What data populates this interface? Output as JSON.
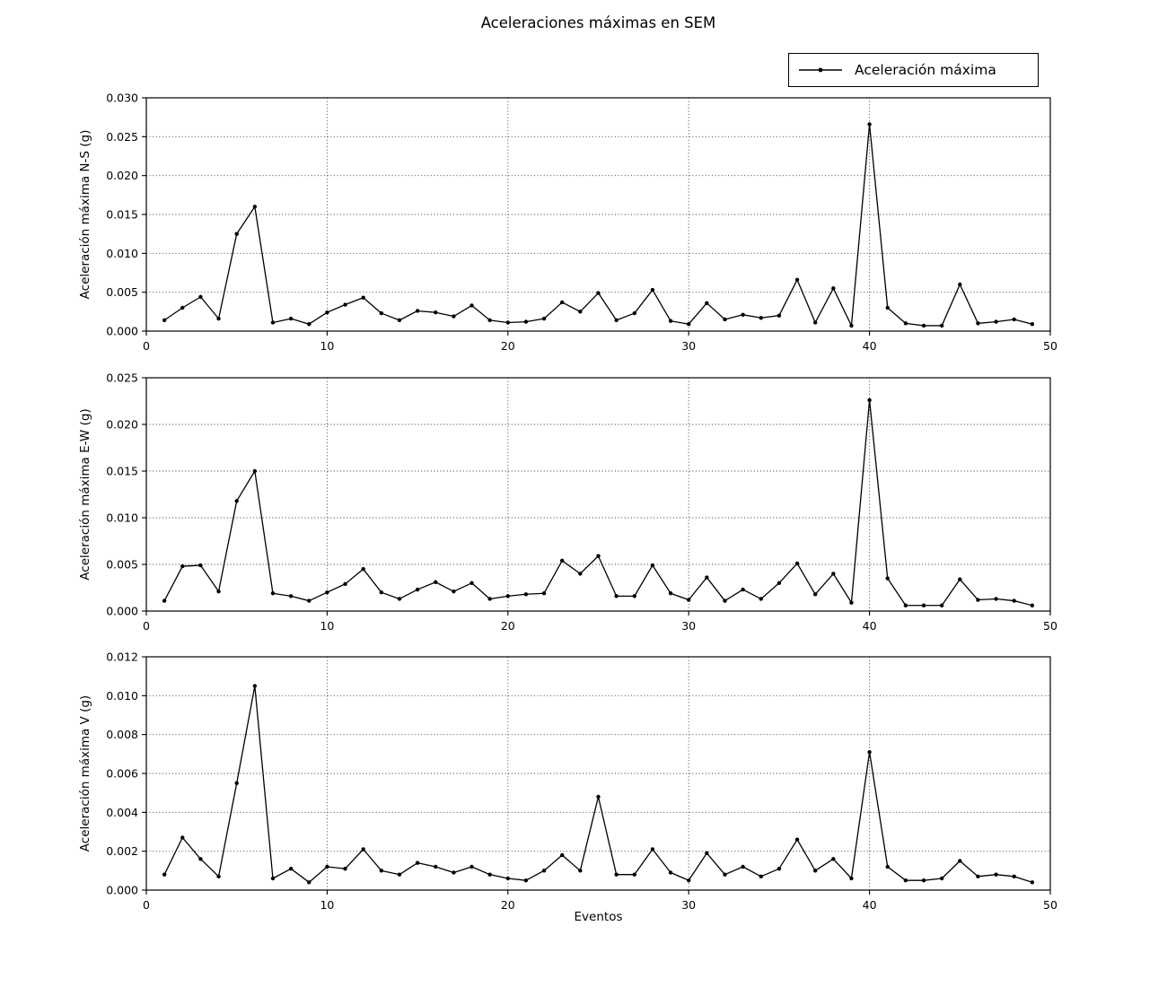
{
  "chart_data": {
    "type": "line",
    "title": "Aceleraciones máximas en SEM",
    "xlabel": "Eventos",
    "legend": [
      "Aceleración máxima"
    ],
    "legend_position": "upper-right-above-axes",
    "grid": true,
    "grid_style": "dotted",
    "line_color": "#000000",
    "marker": "point",
    "x_range": [
      0,
      50
    ],
    "xticks": [
      0,
      10,
      20,
      30,
      40,
      50
    ],
    "x": [
      1,
      2,
      3,
      4,
      5,
      6,
      7,
      8,
      9,
      10,
      11,
      12,
      13,
      14,
      15,
      16,
      17,
      18,
      19,
      20,
      21,
      22,
      23,
      24,
      25,
      26,
      27,
      28,
      29,
      30,
      31,
      32,
      33,
      34,
      35,
      36,
      37,
      38,
      39,
      40,
      41,
      42,
      43,
      44,
      45,
      46,
      47,
      48,
      49
    ],
    "panels": [
      {
        "name": "N-S",
        "ylabel": "Aceleración máxima N-S (g)",
        "ylim": [
          0.0,
          0.03
        ],
        "yticks": [
          0.0,
          0.005,
          0.01,
          0.015,
          0.02,
          0.025,
          0.03
        ],
        "values": [
          0.0014,
          0.003,
          0.0044,
          0.0016,
          0.0125,
          0.016,
          0.0011,
          0.0016,
          0.0009,
          0.0024,
          0.0034,
          0.0043,
          0.0023,
          0.0014,
          0.0026,
          0.0024,
          0.0019,
          0.0033,
          0.0014,
          0.0011,
          0.0012,
          0.0016,
          0.0037,
          0.0025,
          0.0049,
          0.0014,
          0.0023,
          0.0053,
          0.0013,
          0.0009,
          0.0036,
          0.0015,
          0.0021,
          0.0017,
          0.002,
          0.0066,
          0.0011,
          0.0055,
          0.0007,
          0.0266,
          0.003,
          0.001,
          0.0007,
          0.0007,
          0.006,
          0.001,
          0.0012,
          0.0015,
          0.0009
        ]
      },
      {
        "name": "E-W",
        "ylabel": "Aceleración máxima E-W (g)",
        "ylim": [
          0.0,
          0.025
        ],
        "yticks": [
          0.0,
          0.005,
          0.01,
          0.015,
          0.02,
          0.025
        ],
        "values": [
          0.0011,
          0.0048,
          0.0049,
          0.0021,
          0.0118,
          0.015,
          0.0019,
          0.0016,
          0.0011,
          0.002,
          0.0029,
          0.0045,
          0.002,
          0.0013,
          0.0023,
          0.0031,
          0.0021,
          0.003,
          0.0013,
          0.0016,
          0.0018,
          0.0019,
          0.0054,
          0.004,
          0.0059,
          0.0016,
          0.0016,
          0.0049,
          0.0019,
          0.0012,
          0.0036,
          0.0011,
          0.0023,
          0.0013,
          0.003,
          0.0051,
          0.0018,
          0.004,
          0.0009,
          0.0226,
          0.0035,
          0.0006,
          0.0006,
          0.0006,
          0.0034,
          0.0012,
          0.0013,
          0.0011,
          0.0006
        ]
      },
      {
        "name": "V",
        "ylabel": "Aceleración máxima V (g)",
        "ylim": [
          0.0,
          0.012
        ],
        "yticks": [
          0.0,
          0.002,
          0.004,
          0.006,
          0.008,
          0.01,
          0.012
        ],
        "values": [
          0.0008,
          0.0027,
          0.0016,
          0.0007,
          0.0055,
          0.0105,
          0.0006,
          0.0011,
          0.0004,
          0.0012,
          0.0011,
          0.0021,
          0.001,
          0.0008,
          0.0014,
          0.0012,
          0.0009,
          0.0012,
          0.0008,
          0.0006,
          0.0005,
          0.001,
          0.0018,
          0.001,
          0.0048,
          0.0008,
          0.0008,
          0.0021,
          0.0009,
          0.0005,
          0.0019,
          0.0008,
          0.0012,
          0.0007,
          0.0011,
          0.0026,
          0.001,
          0.0016,
          0.0006,
          0.0071,
          0.0012,
          0.0005,
          0.0005,
          0.0006,
          0.0015,
          0.0007,
          0.0008,
          0.0007,
          0.0004
        ]
      }
    ]
  }
}
